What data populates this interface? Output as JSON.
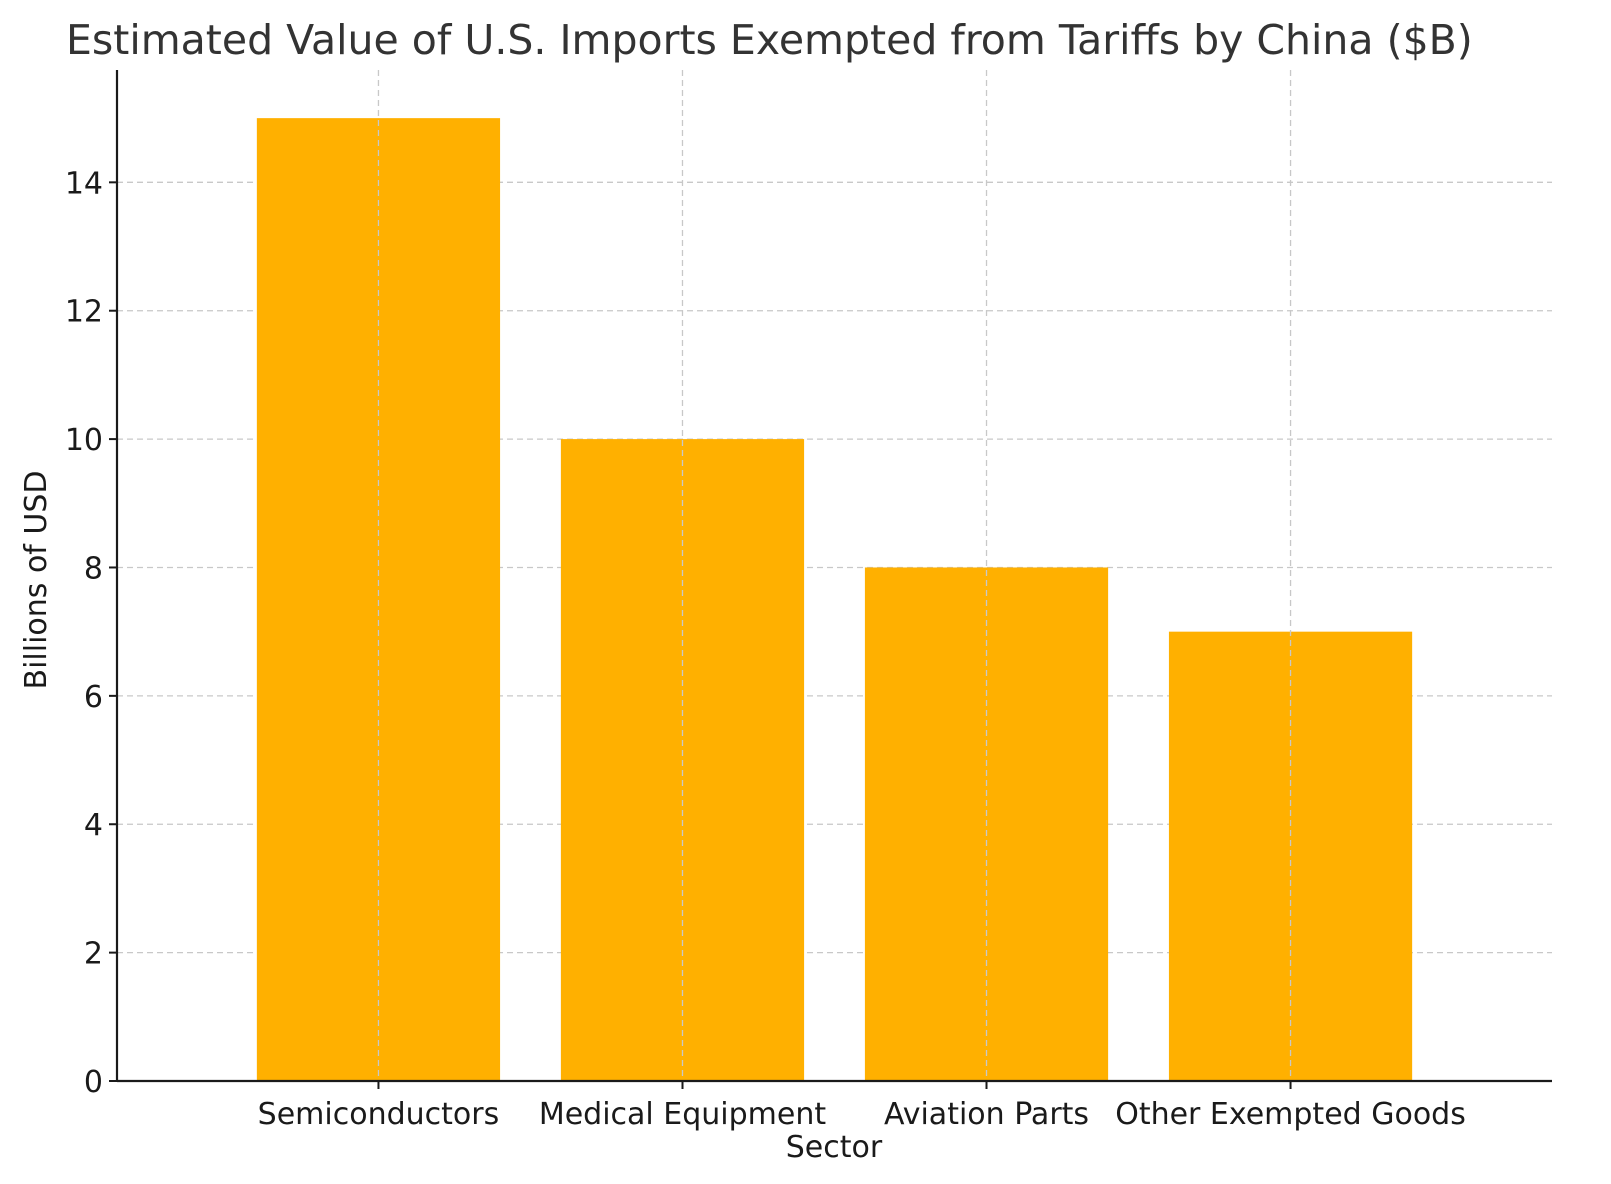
{
  "chart_data": {
    "type": "bar",
    "title": "Estimated Value of U.S. Imports Exempted from Tariffs by China ($B)",
    "xlabel": "Sector",
    "ylabel": "Billions of USD",
    "categories": [
      "Semiconductors",
      "Medical Equipment",
      "Aviation Parts",
      "Other Exempted Goods"
    ],
    "values": [
      15,
      10,
      8,
      7
    ],
    "ylim": [
      0,
      15.75
    ],
    "yticks": [
      0,
      2,
      4,
      6,
      8,
      10,
      12,
      14
    ],
    "grid": true,
    "bar_color": "#FFB000"
  }
}
